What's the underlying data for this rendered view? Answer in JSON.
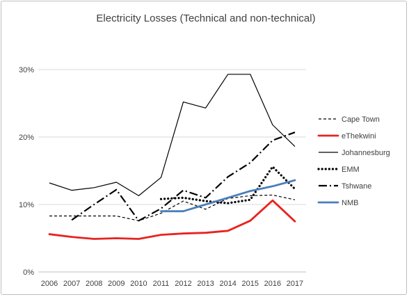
{
  "chart_data": {
    "type": "line",
    "title": "Electricity Losses (Technical and non-technical)",
    "xlabel": "",
    "ylabel": "",
    "categories": [
      "2006",
      "2007",
      "2008",
      "2009",
      "2010",
      "2011",
      "2012",
      "2013",
      "2014",
      "2015",
      "2016",
      "2017"
    ],
    "y_ticks": [
      "0%",
      "10%",
      "20%",
      "30%"
    ],
    "ylim": [
      0,
      30
    ],
    "grid": true,
    "legend_position": "right",
    "series": [
      {
        "name": "Cape Town",
        "color": "#000000",
        "style": "dashed",
        "values": [
          8.3,
          8.3,
          8.3,
          8.3,
          7.6,
          8.7,
          10.5,
          9.3,
          10.9,
          11.3,
          11.4,
          10.7
        ]
      },
      {
        "name": "eThekwini",
        "color": "#e8231f",
        "style": "solid-thick",
        "values": [
          5.6,
          5.2,
          4.9,
          5.0,
          4.9,
          5.5,
          5.7,
          5.8,
          6.1,
          7.6,
          10.6,
          7.5
        ]
      },
      {
        "name": "Johannesburg",
        "color": "#000000",
        "style": "solid",
        "values": [
          13.2,
          12.1,
          12.5,
          13.3,
          11.3,
          14.0,
          25.2,
          24.3,
          29.3,
          29.3,
          21.8,
          18.6
        ]
      },
      {
        "name": "EMM",
        "color": "#000000",
        "style": "dotted",
        "values": [
          null,
          null,
          null,
          null,
          null,
          10.8,
          11.0,
          10.5,
          10.2,
          10.7,
          15.6,
          12.3
        ]
      },
      {
        "name": "Tshwane",
        "color": "#000000",
        "style": "dashdot",
        "values": [
          null,
          7.7,
          10.0,
          12.2,
          7.6,
          9.4,
          12.1,
          11.0,
          14.1,
          16.2,
          19.5,
          20.7
        ]
      },
      {
        "name": "NMB",
        "color": "#4a7ebb",
        "style": "solid-thick",
        "values": [
          null,
          null,
          null,
          null,
          null,
          9.0,
          9.0,
          10.0,
          11.0,
          12.0,
          12.7,
          13.6
        ]
      }
    ]
  }
}
